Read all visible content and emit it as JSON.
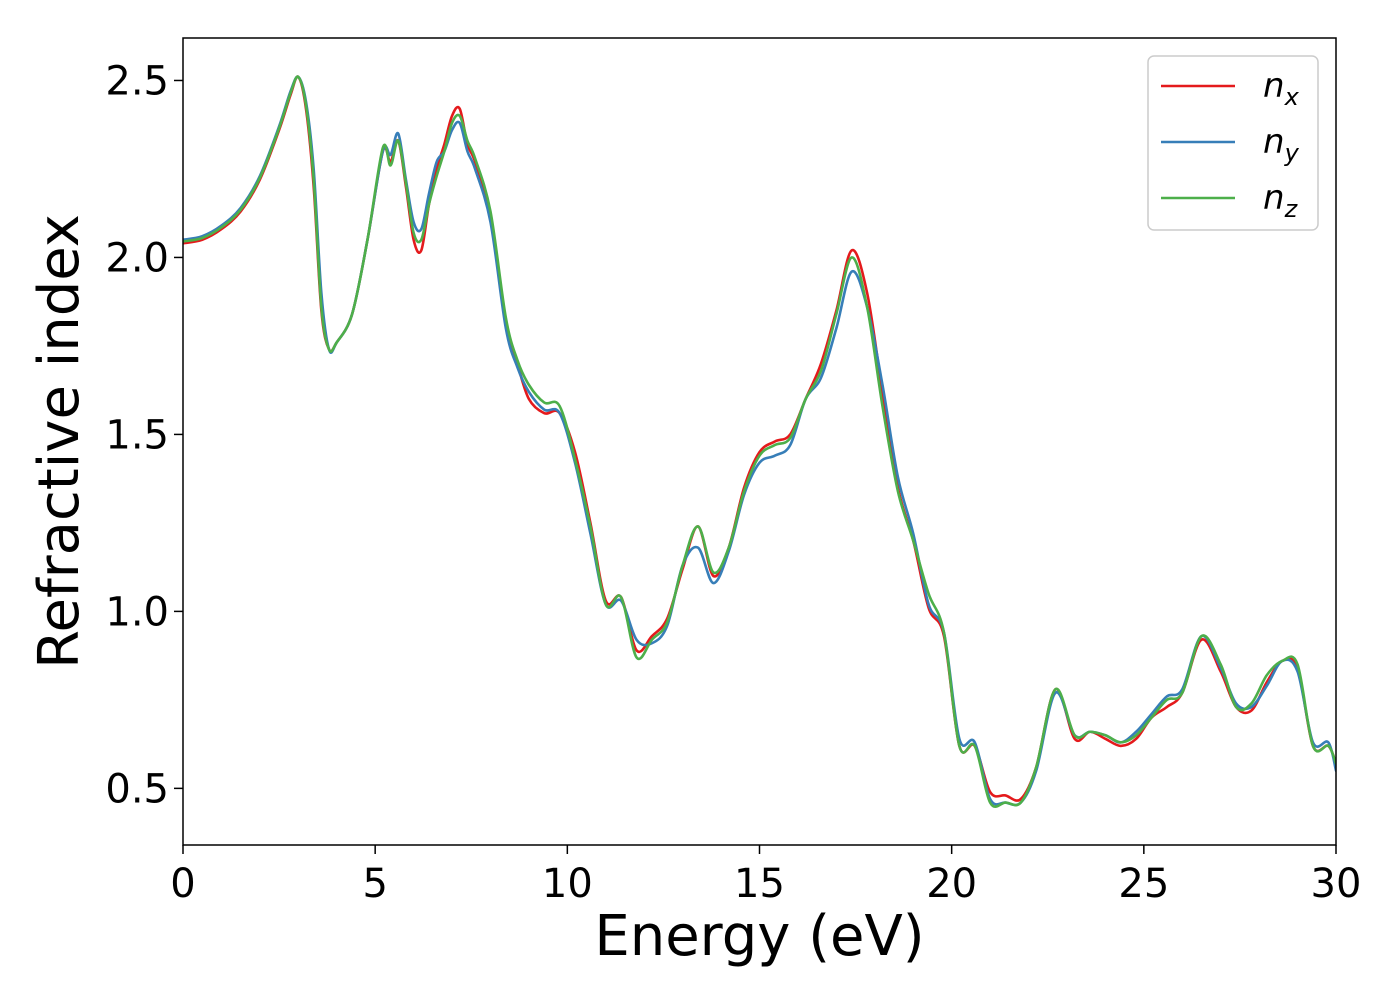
{
  "chart_data": {
    "type": "line",
    "title": "",
    "xlabel": "Energy (eV)",
    "ylabel": "Refractive index",
    "xlim": [
      0,
      30
    ],
    "ylim": [
      0.34,
      2.62
    ],
    "xticks": [
      0,
      5,
      10,
      15,
      20,
      25,
      30
    ],
    "xtick_labels": [
      "0",
      "5",
      "10",
      "15",
      "20",
      "25",
      "30"
    ],
    "yticks": [
      0.5,
      1.0,
      1.5,
      2.0,
      2.5
    ],
    "ytick_labels": [
      "0.5",
      "1.0",
      "1.5",
      "2.0",
      "2.5"
    ],
    "grid": false,
    "legend_position": "top-right",
    "series": [
      {
        "name": "n_x",
        "label_base": "n",
        "label_sub": "x",
        "color": "#e41a1c",
        "x": [
          0,
          0.5,
          1,
          1.5,
          2,
          2.5,
          2.8,
          3.0,
          3.2,
          3.4,
          3.6,
          3.8,
          4.0,
          4.4,
          4.8,
          5.2,
          5.4,
          5.6,
          5.8,
          6.0,
          6.2,
          6.4,
          6.6,
          6.8,
          7.0,
          7.2,
          7.4,
          7.6,
          8.0,
          8.4,
          8.7,
          9.0,
          9.4,
          9.8,
          10.2,
          10.6,
          11.0,
          11.4,
          11.8,
          12.2,
          12.6,
          13.0,
          13.4,
          13.8,
          14.2,
          14.6,
          15.0,
          15.4,
          15.8,
          16.2,
          16.6,
          17.0,
          17.4,
          17.8,
          18.2,
          18.6,
          19.0,
          19.4,
          19.8,
          20.2,
          20.6,
          21.0,
          21.4,
          21.8,
          22.2,
          22.7,
          23.2,
          23.6,
          24.0,
          24.4,
          24.8,
          25.2,
          25.6,
          26.0,
          26.5,
          27.0,
          27.4,
          27.8,
          28.2,
          28.6,
          29.0,
          29.4,
          29.8,
          30.0
        ],
        "y": [
          2.04,
          2.05,
          2.08,
          2.13,
          2.22,
          2.36,
          2.46,
          2.51,
          2.42,
          2.2,
          1.85,
          1.74,
          1.76,
          1.84,
          2.05,
          2.3,
          2.27,
          2.33,
          2.2,
          2.05,
          2.02,
          2.15,
          2.25,
          2.32,
          2.4,
          2.42,
          2.32,
          2.27,
          2.12,
          1.82,
          1.7,
          1.6,
          1.56,
          1.56,
          1.45,
          1.25,
          1.03,
          1.04,
          0.89,
          0.93,
          0.98,
          1.12,
          1.24,
          1.1,
          1.18,
          1.35,
          1.45,
          1.48,
          1.5,
          1.6,
          1.7,
          1.85,
          2.02,
          1.9,
          1.62,
          1.35,
          1.2,
          1.01,
          0.93,
          0.62,
          0.62,
          0.49,
          0.48,
          0.47,
          0.56,
          0.78,
          0.64,
          0.66,
          0.64,
          0.62,
          0.64,
          0.7,
          0.73,
          0.77,
          0.92,
          0.83,
          0.73,
          0.72,
          0.8,
          0.86,
          0.84,
          0.62,
          0.62,
          0.57
        ]
      },
      {
        "name": "n_y",
        "label_base": "n",
        "label_sub": "y",
        "color": "#377eb8",
        "x": [
          0,
          0.5,
          1,
          1.5,
          2,
          2.5,
          2.8,
          3.0,
          3.2,
          3.4,
          3.6,
          3.8,
          4.0,
          4.4,
          4.8,
          5.2,
          5.4,
          5.6,
          5.8,
          6.0,
          6.2,
          6.4,
          6.6,
          6.8,
          7.0,
          7.2,
          7.4,
          7.6,
          8.0,
          8.4,
          8.7,
          9.0,
          9.4,
          9.8,
          10.2,
          10.6,
          11.0,
          11.4,
          11.8,
          12.2,
          12.6,
          13.0,
          13.4,
          13.8,
          14.2,
          14.6,
          15.0,
          15.4,
          15.8,
          16.2,
          16.6,
          17.0,
          17.4,
          17.8,
          18.2,
          18.6,
          19.0,
          19.4,
          19.8,
          20.2,
          20.6,
          21.0,
          21.4,
          21.8,
          22.2,
          22.7,
          23.2,
          23.6,
          24.0,
          24.4,
          24.8,
          25.2,
          25.6,
          26.0,
          26.5,
          27.0,
          27.4,
          27.8,
          28.2,
          28.6,
          29.0,
          29.4,
          29.8,
          30.0
        ],
        "y": [
          2.05,
          2.06,
          2.09,
          2.14,
          2.23,
          2.37,
          2.47,
          2.51,
          2.44,
          2.25,
          1.9,
          1.74,
          1.76,
          1.84,
          2.05,
          2.3,
          2.29,
          2.35,
          2.22,
          2.1,
          2.08,
          2.18,
          2.27,
          2.3,
          2.36,
          2.38,
          2.3,
          2.25,
          2.1,
          1.8,
          1.69,
          1.62,
          1.57,
          1.56,
          1.42,
          1.22,
          1.02,
          1.03,
          0.92,
          0.91,
          0.96,
          1.13,
          1.18,
          1.08,
          1.17,
          1.33,
          1.42,
          1.44,
          1.47,
          1.6,
          1.66,
          1.8,
          1.96,
          1.86,
          1.64,
          1.38,
          1.22,
          1.02,
          0.94,
          0.64,
          0.63,
          0.47,
          0.46,
          0.46,
          0.55,
          0.77,
          0.65,
          0.66,
          0.65,
          0.63,
          0.66,
          0.71,
          0.76,
          0.78,
          0.93,
          0.84,
          0.74,
          0.73,
          0.79,
          0.86,
          0.83,
          0.63,
          0.63,
          0.55
        ]
      },
      {
        "name": "n_z",
        "label_base": "n",
        "label_sub": "z",
        "color": "#4daf4a",
        "x": [
          0,
          0.5,
          1,
          1.5,
          2,
          2.5,
          2.8,
          3.0,
          3.2,
          3.4,
          3.6,
          3.8,
          4.0,
          4.4,
          4.8,
          5.2,
          5.4,
          5.6,
          5.8,
          6.0,
          6.2,
          6.4,
          6.6,
          6.8,
          7.0,
          7.2,
          7.4,
          7.6,
          8.0,
          8.4,
          8.7,
          9.0,
          9.4,
          9.8,
          10.2,
          10.6,
          11.0,
          11.4,
          11.8,
          12.2,
          12.6,
          13.0,
          13.4,
          13.8,
          14.2,
          14.6,
          15.0,
          15.4,
          15.8,
          16.2,
          16.6,
          17.0,
          17.4,
          17.8,
          18.2,
          18.6,
          19.0,
          19.4,
          19.8,
          20.2,
          20.6,
          21.0,
          21.4,
          21.8,
          22.2,
          22.7,
          23.2,
          23.6,
          24.0,
          24.4,
          24.8,
          25.2,
          25.6,
          26.0,
          26.5,
          27.0,
          27.4,
          27.8,
          28.2,
          28.6,
          29.0,
          29.4,
          29.8,
          30.0
        ],
        "y": [
          2.045,
          2.055,
          2.085,
          2.135,
          2.225,
          2.365,
          2.465,
          2.51,
          2.43,
          2.22,
          1.86,
          1.74,
          1.76,
          1.84,
          2.05,
          2.31,
          2.26,
          2.33,
          2.21,
          2.07,
          2.05,
          2.15,
          2.23,
          2.3,
          2.38,
          2.4,
          2.33,
          2.28,
          2.13,
          1.83,
          1.71,
          1.64,
          1.59,
          1.58,
          1.43,
          1.24,
          1.02,
          1.04,
          0.87,
          0.92,
          0.97,
          1.13,
          1.24,
          1.11,
          1.18,
          1.34,
          1.44,
          1.47,
          1.49,
          1.6,
          1.68,
          1.84,
          2.0,
          1.86,
          1.58,
          1.34,
          1.2,
          1.05,
          0.94,
          0.62,
          0.62,
          0.46,
          0.46,
          0.46,
          0.56,
          0.78,
          0.65,
          0.66,
          0.65,
          0.63,
          0.65,
          0.7,
          0.75,
          0.77,
          0.93,
          0.85,
          0.73,
          0.74,
          0.82,
          0.86,
          0.85,
          0.62,
          0.62,
          0.57
        ]
      }
    ]
  }
}
